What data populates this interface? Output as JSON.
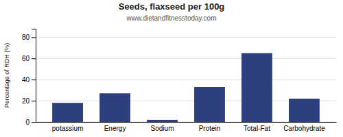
{
  "chart_data": {
    "type": "bar",
    "title": "Seeds, flaxseed per 100g",
    "subtitle": "www.dietandfitnesstoday.com",
    "categories": [
      "potassium",
      "Energy",
      "Sodium",
      "Protein",
      "Total-Fat",
      "Carbohydrate"
    ],
    "values": [
      18,
      27,
      2,
      33,
      65,
      22
    ],
    "color": "#2e3f7f",
    "ylabel": "Percentage of RDH (%)",
    "ylim": [
      0,
      88
    ],
    "yticks": [
      0,
      20,
      40,
      60,
      80
    ],
    "grid": true
  }
}
